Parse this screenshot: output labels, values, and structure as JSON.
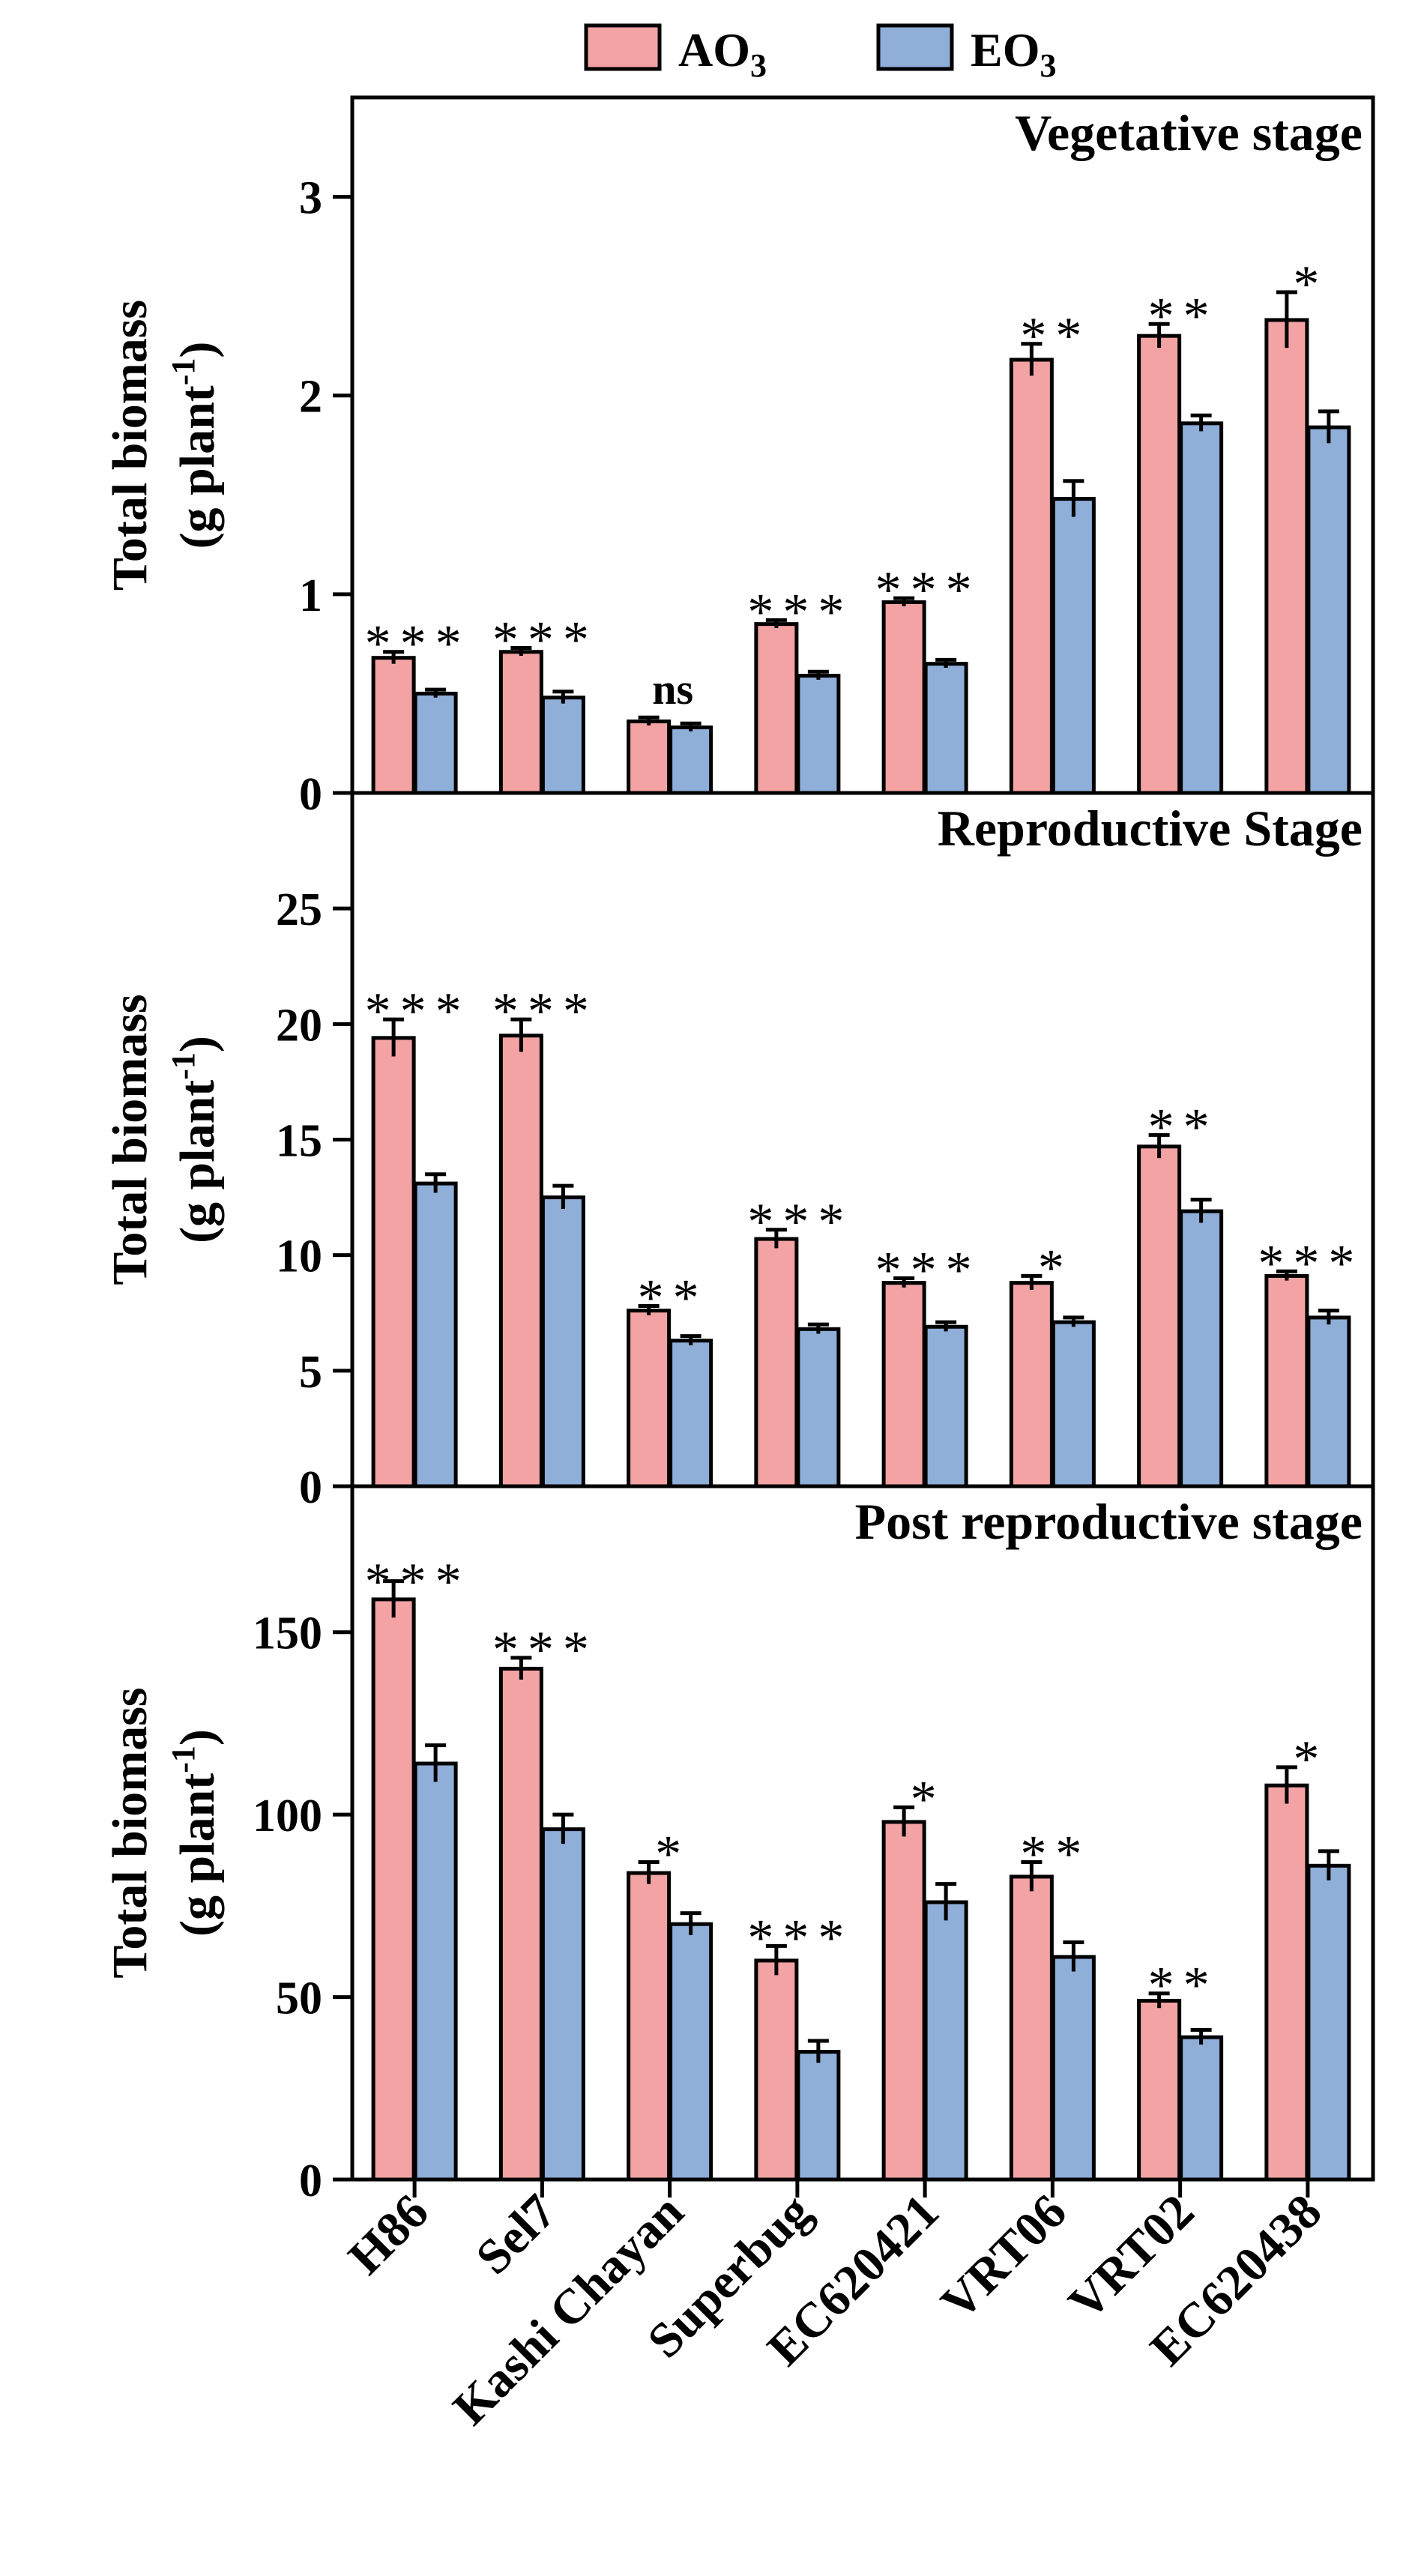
{
  "legend": [
    {
      "name": "AO",
      "sub": "3",
      "color": "#f4a3a4"
    },
    {
      "name": "EO",
      "sub": "3",
      "color": "#8faed8"
    }
  ],
  "colors": {
    "ao": "#f4a3a4",
    "eo": "#8faed8",
    "axis": "#000000"
  },
  "ylabel": {
    "line1": "Total biomass",
    "line2": "(g plant",
    "sup": "-1",
    "close": ")"
  },
  "chart_data": [
    {
      "type": "bar",
      "title": "Vegetative stage",
      "categories": [
        "H86",
        "Sel7",
        "Kashi Chayan",
        "Superbug",
        "EC620421",
        "VRT06",
        "VRT02",
        "EC620438"
      ],
      "series": [
        {
          "name": "AO3",
          "values": [
            0.68,
            0.71,
            0.36,
            0.85,
            0.96,
            2.18,
            2.3,
            2.38
          ],
          "errors": [
            0.03,
            0.02,
            0.02,
            0.02,
            0.02,
            0.08,
            0.06,
            0.14
          ]
        },
        {
          "name": "EO3",
          "values": [
            0.5,
            0.48,
            0.33,
            0.59,
            0.65,
            1.48,
            1.86,
            1.84
          ],
          "errors": [
            0.02,
            0.03,
            0.02,
            0.02,
            0.02,
            0.09,
            0.04,
            0.08
          ]
        }
      ],
      "significance": [
        "***",
        "***",
        "ns",
        "***",
        "***",
        "**",
        "**",
        "*"
      ],
      "ylim": [
        0,
        3.5
      ],
      "yticks": [
        0,
        1,
        2,
        3
      ]
    },
    {
      "type": "bar",
      "title": "Reproductive Stage",
      "categories": [
        "H86",
        "Sel7",
        "Kashi Chayan",
        "Superbug",
        "EC620421",
        "VRT06",
        "VRT02",
        "EC620438"
      ],
      "series": [
        {
          "name": "AO3",
          "values": [
            19.4,
            19.5,
            7.6,
            10.7,
            8.8,
            8.8,
            14.7,
            9.1
          ],
          "errors": [
            0.8,
            0.7,
            0.2,
            0.4,
            0.2,
            0.3,
            0.5,
            0.2
          ]
        },
        {
          "name": "EO3",
          "values": [
            13.1,
            12.5,
            6.3,
            6.8,
            6.9,
            7.1,
            11.9,
            7.3
          ],
          "errors": [
            0.4,
            0.5,
            0.2,
            0.2,
            0.2,
            0.2,
            0.5,
            0.3
          ]
        }
      ],
      "significance": [
        "***",
        "***",
        "**",
        "***",
        "***",
        "*",
        "**",
        "***"
      ],
      "ylim": [
        0,
        30
      ],
      "yticks": [
        0,
        5,
        10,
        15,
        20,
        25
      ]
    },
    {
      "type": "bar",
      "title": "Post reproductive stage",
      "categories": [
        "H86",
        "Sel7",
        "Kashi Chayan",
        "Superbug",
        "EC620421",
        "VRT06",
        "VRT02",
        "EC620438"
      ],
      "series": [
        {
          "name": "AO3",
          "values": [
            159,
            140,
            84,
            60,
            98,
            83,
            49,
            108
          ],
          "errors": [
            5,
            3,
            3,
            4,
            4,
            4,
            2,
            5
          ]
        },
        {
          "name": "EO3",
          "values": [
            114,
            96,
            70,
            35,
            76,
            61,
            39,
            86
          ],
          "errors": [
            5,
            4,
            3,
            3,
            5,
            4,
            2,
            4
          ]
        }
      ],
      "significance": [
        "***",
        "***",
        "*",
        "***",
        "*",
        "**",
        "**",
        "*"
      ],
      "ylim": [
        0,
        190
      ],
      "yticks": [
        0,
        50,
        100,
        150
      ]
    }
  ]
}
